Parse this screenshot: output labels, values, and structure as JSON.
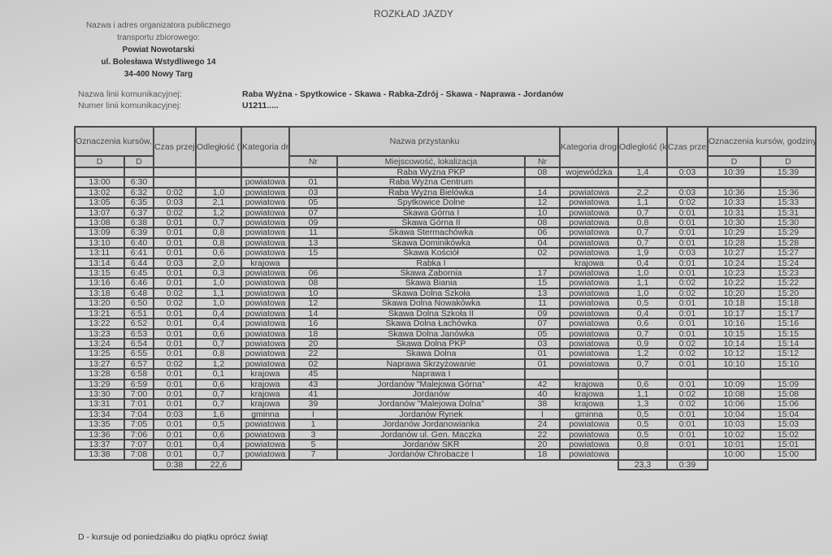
{
  "title": "ROZKŁAD JAZDY",
  "organizer": {
    "label_line1": "Nazwa i adres organizatora publicznego",
    "label_line2": "transportu zbiorowego:",
    "name": "Powiat Nowotarski",
    "street": "ul. Bolesława Wstydliwego 14",
    "city": "34-400 Nowy Targ"
  },
  "line": {
    "name_label": "Nazwa linii komunikacyjnej:",
    "name_value": "Raba Wyżna - Spytkowice - Skawa - Rabka-Zdrój - Skawa - Naprawa - Jordanów",
    "number_label": "Numer linii komunikacyjnej:",
    "number_value": "U1211....."
  },
  "table": {
    "header": {
      "courses": "Oznaczenia kursów, godziny przyjazdów i odjazdów.",
      "time": "Czas przejazdu",
      "distance": "Odległość (km)",
      "road_category": "Kategoria drogi",
      "stop_name": "Nazwa przystanku",
      "nr": "Nr",
      "locality": "Miejscowość, lokalizacja",
      "d": "D"
    },
    "rows": [
      [
        "",
        "",
        "",
        "",
        "",
        "",
        "Raba Wyżna PKP",
        "08",
        "wojewódzka",
        "1,4",
        "0:03",
        "10:39",
        "15:39"
      ],
      [
        "13:00",
        "6:30",
        "",
        "",
        "powiatowa",
        "01",
        "Raba Wyżna Centrum",
        "",
        "",
        "",
        "",
        "",
        ""
      ],
      [
        "13:02",
        "6:32",
        "0:02",
        "1,0",
        "powiatowa",
        "03",
        "Raba Wyżna Bielówka",
        "14",
        "powiatowa",
        "2,2",
        "0:03",
        "10:36",
        "15:36"
      ],
      [
        "13:05",
        "6:35",
        "0:03",
        "2,1",
        "powiatowa",
        "05",
        "Spytkowice Dolne",
        "12",
        "powiatowa",
        "1,1",
        "0:02",
        "10:33",
        "15:33"
      ],
      [
        "13:07",
        "6:37",
        "0:02",
        "1,2",
        "powiatowa",
        "07",
        "Skawa Górna I",
        "10",
        "powiatowa",
        "0,7",
        "0:01",
        "10:31",
        "15:31"
      ],
      [
        "13:08",
        "6:38",
        "0:01",
        "0,7",
        "powiatowa",
        "09",
        "Skawa Górna II",
        "08",
        "powiatowa",
        "0,8",
        "0:01",
        "10:30",
        "15:30"
      ],
      [
        "13:09",
        "6:39",
        "0:01",
        "0,8",
        "powiatowa",
        "11",
        "Skawa Stermachówka",
        "06",
        "powiatowa",
        "0,7",
        "0:01",
        "10:29",
        "15:29"
      ],
      [
        "13:10",
        "6:40",
        "0:01",
        "0,8",
        "powiatowa",
        "13",
        "Skawa Dominikówka",
        "04",
        "powiatowa",
        "0,7",
        "0:01",
        "10:28",
        "15:28"
      ],
      [
        "13:11",
        "6:41",
        "0:01",
        "0,6",
        "powiatowa",
        "15",
        "Skawa Kościół",
        "02",
        "powiatowa",
        "1,9",
        "0:03",
        "10:27",
        "15:27"
      ],
      [
        "13:14",
        "6:44",
        "0:03",
        "2,0",
        "krajowa",
        "",
        "Rabka I",
        "",
        "krajowa",
        "0,4",
        "0:01",
        "10:24",
        "15:24"
      ],
      [
        "13:15",
        "6:45",
        "0:01",
        "0,3",
        "powiatowa",
        "06",
        "Skawa Zabornia",
        "17",
        "powiatowa",
        "1,0",
        "0:01",
        "10:23",
        "15:23"
      ],
      [
        "13:16",
        "6:46",
        "0:01",
        "1,0",
        "powiatowa",
        "08",
        "Skawa Biania",
        "15",
        "powiatowa",
        "1,1",
        "0:02",
        "10:22",
        "15:22"
      ],
      [
        "13:18",
        "6:48",
        "0:02",
        "1,1",
        "powiatowa",
        "10",
        "Skawa Dolna Szkoła",
        "13",
        "powiatowa",
        "1,0",
        "0:02",
        "10:20",
        "15:20"
      ],
      [
        "13:20",
        "6:50",
        "0:02",
        "1,0",
        "powiatowa",
        "12",
        "Skawa Dolna Nowakówka",
        "11",
        "powiatowa",
        "0,5",
        "0:01",
        "10:18",
        "15:18"
      ],
      [
        "13:21",
        "6:51",
        "0:01",
        "0,4",
        "powiatowa",
        "14",
        "Skawa Dolna Szkoła II",
        "09",
        "powiatowa",
        "0,4",
        "0:01",
        "10:17",
        "15:17"
      ],
      [
        "13:22",
        "6:52",
        "0:01",
        "0,4",
        "powiatowa",
        "16",
        "Skawa Dolna Łachówka",
        "07",
        "powiatowa",
        "0,6",
        "0:01",
        "10:16",
        "15:16"
      ],
      [
        "13:23",
        "6:53",
        "0:01",
        "0,6",
        "powiatowa",
        "18",
        "Skawa Dolna Janówka",
        "05",
        "powiatowa",
        "0,7",
        "0:01",
        "10:15",
        "15:15"
      ],
      [
        "13:24",
        "6:54",
        "0:01",
        "0,7",
        "powiatowa",
        "20",
        "Skawa Dolna PKP",
        "03",
        "powiatowa",
        "0,9",
        "0:02",
        "10:14",
        "15:14"
      ],
      [
        "13:25",
        "6:55",
        "0:01",
        "0,8",
        "powiatowa",
        "22",
        "Skawa Dolna",
        "01",
        "powiatowa",
        "1,2",
        "0:02",
        "10:12",
        "15:12"
      ],
      [
        "13:27",
        "6:57",
        "0:02",
        "1,2",
        "powiatowa",
        "02",
        "Naprawa Skrzyżowanie",
        "01",
        "powiatowa",
        "0,7",
        "0:01",
        "10:10",
        "15:10"
      ],
      [
        "13:28",
        "6:58",
        "0:01",
        "0,1",
        "krajowa",
        "45",
        "Naprawa I",
        "",
        "",
        "",
        "",
        "",
        ""
      ],
      [
        "13:29",
        "6:59",
        "0:01",
        "0,6",
        "krajowa",
        "43",
        "Jordanów \"Malejowa Górna\"",
        "42",
        "krajowa",
        "0,6",
        "0:01",
        "10:09",
        "15:09"
      ],
      [
        "13:30",
        "7:00",
        "0:01",
        "0,7",
        "krajowa",
        "41",
        "Jordanów",
        "40",
        "krajowa",
        "1,1",
        "0:02",
        "10:08",
        "15:08"
      ],
      [
        "13:31",
        "7:01",
        "0:01",
        "0,7",
        "krajowa",
        "39",
        "Jordanów \"Malejowa Dolna\"",
        "38",
        "krajowa",
        "1,3",
        "0:02",
        "10:06",
        "15:06"
      ],
      [
        "13:34",
        "7:04",
        "0:03",
        "1,6",
        "gminna",
        "I",
        "Jordanów Rynek",
        "I",
        "gminna",
        "0,5",
        "0:01",
        "10:04",
        "15:04"
      ],
      [
        "13:35",
        "7:05",
        "0:01",
        "0,5",
        "powiatowa",
        "1",
        "Jordanów Jordanowianka",
        "24",
        "powiatowa",
        "0,5",
        "0:01",
        "10:03",
        "15:03"
      ],
      [
        "13:36",
        "7:06",
        "0:01",
        "0,6",
        "powiatowa",
        "3",
        "Jordanów ul. Gen. Maczka",
        "22",
        "powiatowa",
        "0,5",
        "0:01",
        "10:02",
        "15:02"
      ],
      [
        "13:37",
        "7:07",
        "0:01",
        "0,4",
        "powiatowa",
        "5",
        "Jordanów SKR",
        "20",
        "powiatowa",
        "0,8",
        "0:01",
        "10:01",
        "15:01"
      ],
      [
        "13:38",
        "7:08",
        "0:01",
        "0,7",
        "powiatowa",
        "7",
        "Jordanów Chrobacze I",
        "18",
        "powiatowa",
        "",
        "",
        "10:00",
        "15:00"
      ]
    ],
    "totals": {
      "left_time": "0:38",
      "left_distance": "22,6",
      "right_distance": "23,3",
      "right_time": "0:39"
    }
  },
  "footnote": "D - kursuje od poniedziałku do piątku oprócz świąt"
}
